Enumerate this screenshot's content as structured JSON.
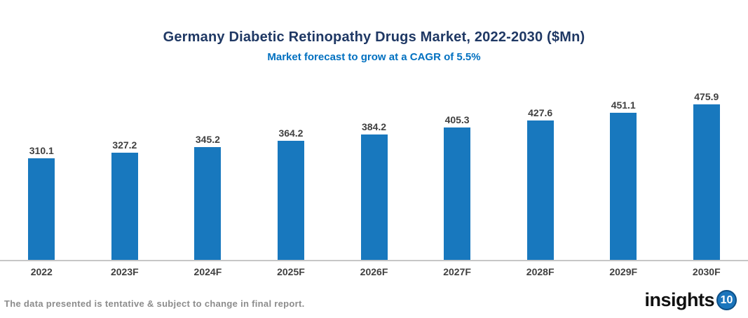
{
  "header": {
    "title": "Germany Diabetic Retinopathy Drugs Market, 2022-2030 ($Mn)",
    "subtitle": "Market forecast to grow at a CAGR of 5.5%"
  },
  "chart_data": {
    "type": "bar",
    "title": "Germany Diabetic Retinopathy Drugs Market, 2022-2030 ($Mn)",
    "subtitle": "Market forecast to grow at a CAGR of 5.5%",
    "categories": [
      "2022",
      "2023F",
      "2024F",
      "2025F",
      "2026F",
      "2027F",
      "2028F",
      "2029F",
      "2030F"
    ],
    "values": [
      310.1,
      327.2,
      345.2,
      364.2,
      384.2,
      405.3,
      427.6,
      451.1,
      475.9
    ],
    "xlabel": "",
    "ylabel": "",
    "ylim": [
      0,
      500
    ],
    "grid": false,
    "legend": "none",
    "data_labels": true,
    "bar_color": "#1878BE",
    "data_label_color": "#404040",
    "axis_line_color": "#C6C6C6"
  },
  "footer": {
    "disclaimer": "The data presented is tentative & subject to change in final report.",
    "logo_text": "insights",
    "logo_badge": "10"
  },
  "colors": {
    "title": "#1F3864",
    "subtitle": "#0070C0",
    "bar": "#1878BE",
    "logo_badge_bg": "#1B75BC"
  }
}
